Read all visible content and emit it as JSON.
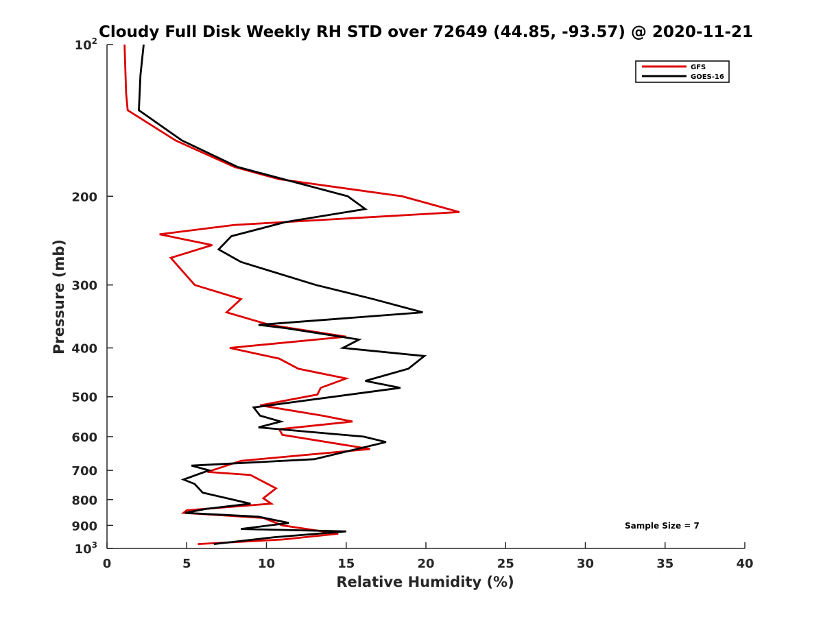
{
  "chart_data": {
    "type": "line",
    "title": "Cloudy Full Disk Weekly RH STD over 72649 (44.85, -93.57) @ 2020-11-21",
    "xlabel": "Relative Humidity (%)",
    "ylabel": "Pressure (mb)",
    "xlim": [
      0,
      40
    ],
    "ylim": [
      100,
      1000
    ],
    "y_scale": "log",
    "y_reversed": true,
    "grid": false,
    "legend_position": "top-right",
    "x_ticks": [
      "0",
      "5",
      "10",
      "15",
      "20",
      "25",
      "30",
      "35",
      "40"
    ],
    "x_tick_values": [
      0,
      5,
      10,
      15,
      20,
      25,
      30,
      35,
      40
    ],
    "y_ticks": [
      {
        "value": 100,
        "base": "10",
        "exp": "2"
      },
      {
        "value": 200,
        "label": "200"
      },
      {
        "value": 300,
        "label": "300"
      },
      {
        "value": 400,
        "label": "400"
      },
      {
        "value": 500,
        "label": "500"
      },
      {
        "value": 600,
        "label": "600"
      },
      {
        "value": 700,
        "label": "700"
      },
      {
        "value": 800,
        "label": "800"
      },
      {
        "value": 900,
        "label": "900"
      },
      {
        "value": 1000,
        "base": "10",
        "exp": "3"
      }
    ],
    "annotation": "Sample Size = 7",
    "series": [
      {
        "name": "GFS",
        "color": "#dd0000",
        "points": [
          [
            1.1,
            100
          ],
          [
            1.2,
            125
          ],
          [
            1.3,
            135
          ],
          [
            4.3,
            155
          ],
          [
            8,
            175
          ],
          [
            10.8,
            185
          ],
          [
            18.5,
            200
          ],
          [
            22.1,
            215
          ],
          [
            8,
            228
          ],
          [
            3.3,
            238
          ],
          [
            6.6,
            250
          ],
          [
            4,
            265
          ],
          [
            5.5,
            300
          ],
          [
            8.4,
            320
          ],
          [
            7.5,
            340
          ],
          [
            10.2,
            360
          ],
          [
            15,
            380
          ],
          [
            7.7,
            400
          ],
          [
            10.8,
            420
          ],
          [
            12,
            440
          ],
          [
            15,
            460
          ],
          [
            13.4,
            480
          ],
          [
            13.2,
            495
          ],
          [
            9.6,
            520
          ],
          [
            13.5,
            545
          ],
          [
            15.4,
            560
          ],
          [
            10.8,
            580
          ],
          [
            11,
            595
          ],
          [
            16.5,
            635
          ],
          [
            8.4,
            670
          ],
          [
            6.3,
            705
          ],
          [
            9,
            715
          ],
          [
            10.6,
            760
          ],
          [
            9.8,
            795
          ],
          [
            10.3,
            815
          ],
          [
            5,
            840
          ],
          [
            4.8,
            850
          ],
          [
            9.8,
            870
          ],
          [
            11,
            900
          ],
          [
            14.5,
            935
          ],
          [
            11,
            960
          ],
          [
            5.7,
            980
          ]
        ]
      },
      {
        "name": "GOES-16",
        "color": "#000000",
        "points": [
          [
            2.3,
            100
          ],
          [
            2.1,
            115
          ],
          [
            2.0,
            135
          ],
          [
            4.7,
            155
          ],
          [
            8.2,
            175
          ],
          [
            15.1,
            200
          ],
          [
            16.2,
            212
          ],
          [
            11.2,
            225
          ],
          [
            7.8,
            240
          ],
          [
            7,
            255
          ],
          [
            8.4,
            270
          ],
          [
            13.1,
            300
          ],
          [
            16.7,
            320
          ],
          [
            19.8,
            340
          ],
          [
            9.5,
            360
          ],
          [
            11.1,
            365
          ],
          [
            15.8,
            385
          ],
          [
            14.8,
            400
          ],
          [
            19.9,
            415
          ],
          [
            18.9,
            440
          ],
          [
            16.2,
            465
          ],
          [
            18.4,
            480
          ],
          [
            9.2,
            525
          ],
          [
            9.6,
            545
          ],
          [
            10.9,
            560
          ],
          [
            9.5,
            575
          ],
          [
            16.1,
            600
          ],
          [
            17.5,
            615
          ],
          [
            13,
            665
          ],
          [
            5.3,
            685
          ],
          [
            6.4,
            700
          ],
          [
            4.8,
            730
          ],
          [
            5.5,
            745
          ],
          [
            6,
            775
          ],
          [
            9,
            815
          ],
          [
            6.2,
            835
          ],
          [
            4.9,
            850
          ],
          [
            9.5,
            865
          ],
          [
            11.4,
            890
          ],
          [
            8.4,
            915
          ],
          [
            15,
            925
          ],
          [
            10.5,
            950
          ],
          [
            6.7,
            980
          ]
        ]
      }
    ]
  }
}
